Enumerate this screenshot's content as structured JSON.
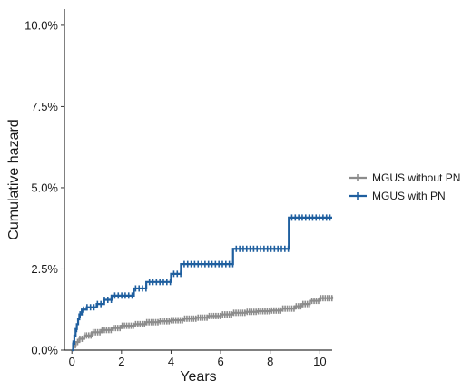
{
  "chart_data": {
    "type": "line",
    "step": true,
    "xlabel": "Years",
    "ylabel": "Cumulative hazard",
    "xlim": [
      -0.3,
      10.5
    ],
    "ylim": [
      0,
      10.5
    ],
    "x_ticks": [
      0,
      2,
      4,
      6,
      8,
      10
    ],
    "x_tick_labels": [
      "0",
      "2",
      "4",
      "6",
      "8",
      "10"
    ],
    "y_ticks": [
      0,
      2.5,
      5,
      7.5,
      10
    ],
    "y_tick_labels": [
      "0.0%",
      "2.5%",
      "5.0%",
      "7.5%",
      "10.0%"
    ],
    "grid": false,
    "legend_position": "right",
    "series": [
      {
        "name": "MGUS without PN",
        "color": "#8c8c8c",
        "points": [
          [
            0,
            0
          ],
          [
            0.05,
            0.15
          ],
          [
            0.15,
            0.25
          ],
          [
            0.3,
            0.35
          ],
          [
            0.5,
            0.45
          ],
          [
            0.8,
            0.55
          ],
          [
            1.2,
            0.62
          ],
          [
            1.6,
            0.68
          ],
          [
            2.0,
            0.75
          ],
          [
            2.5,
            0.8
          ],
          [
            3.0,
            0.86
          ],
          [
            3.5,
            0.89
          ],
          [
            4.0,
            0.92
          ],
          [
            4.5,
            0.97
          ],
          [
            5.0,
            1.0
          ],
          [
            5.5,
            1.05
          ],
          [
            6.0,
            1.1
          ],
          [
            6.5,
            1.15
          ],
          [
            7.0,
            1.18
          ],
          [
            7.5,
            1.2
          ],
          [
            8.0,
            1.22
          ],
          [
            8.5,
            1.28
          ],
          [
            9.0,
            1.35
          ],
          [
            9.3,
            1.42
          ],
          [
            9.6,
            1.52
          ],
          [
            10.0,
            1.6
          ],
          [
            10.5,
            1.65
          ]
        ]
      },
      {
        "name": "MGUS with PN",
        "color": "#1f5f9f",
        "points": [
          [
            0,
            0
          ],
          [
            0.05,
            0.2
          ],
          [
            0.1,
            0.45
          ],
          [
            0.15,
            0.65
          ],
          [
            0.2,
            0.8
          ],
          [
            0.25,
            0.95
          ],
          [
            0.3,
            1.1
          ],
          [
            0.4,
            1.25
          ],
          [
            0.6,
            1.32
          ],
          [
            1.0,
            1.42
          ],
          [
            1.3,
            1.55
          ],
          [
            1.6,
            1.68
          ],
          [
            2.5,
            1.9
          ],
          [
            3.0,
            2.1
          ],
          [
            4.0,
            2.35
          ],
          [
            4.4,
            2.65
          ],
          [
            6.5,
            3.12
          ],
          [
            8.75,
            4.08
          ],
          [
            10.5,
            4.08
          ]
        ]
      }
    ]
  }
}
